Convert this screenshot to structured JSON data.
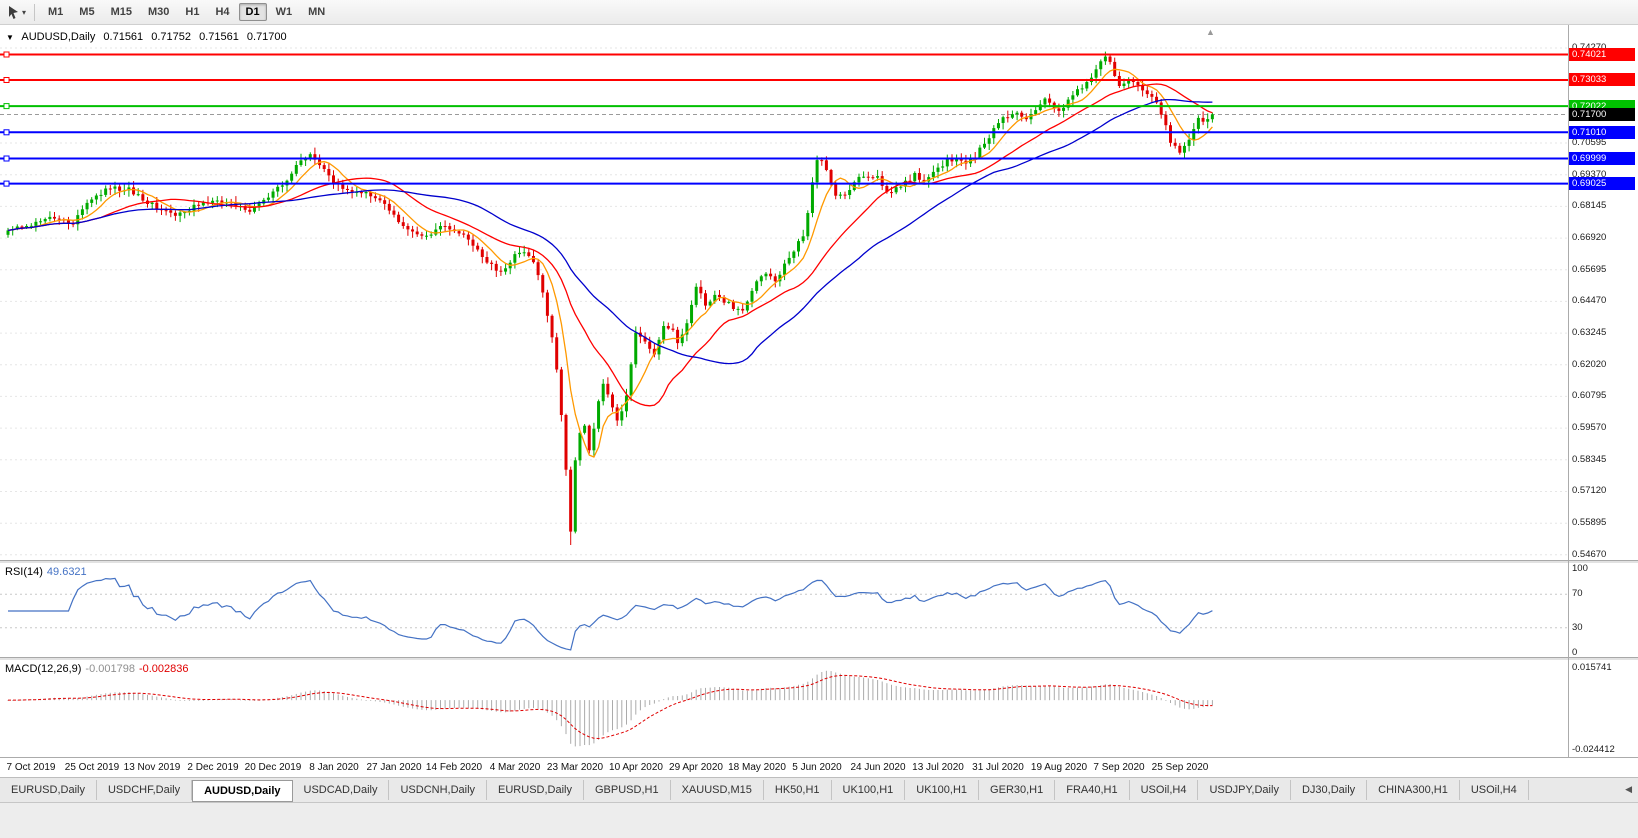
{
  "toolbar": {
    "timeframes": [
      "M1",
      "M5",
      "M15",
      "M30",
      "H1",
      "H4",
      "D1",
      "W1",
      "MN"
    ],
    "active_timeframe": "D1"
  },
  "header": {
    "symbol": "AUDUSD,Daily",
    "open": "0.71561",
    "high": "0.71752",
    "low": "0.71561",
    "close": "0.71700"
  },
  "chart_data": {
    "type": "candlestick",
    "symbol": "AUDUSD",
    "timeframe": "Daily",
    "ohlc_current": {
      "open": 0.71561,
      "high": 0.71752,
      "low": 0.71561,
      "close": 0.717
    },
    "ylim": [
      0.5447,
      0.7516
    ],
    "candle_count": 260,
    "first_open": 0.6705,
    "last_close": 0.717,
    "noise": 0.0009,
    "up_color": "#00AA00",
    "down_color": "#E00000",
    "bid_line_color": "#9a9a9a",
    "price_anchors": [
      [
        0,
        0.672
      ],
      [
        5,
        0.6745
      ],
      [
        10,
        0.6775
      ],
      [
        14,
        0.675
      ],
      [
        18,
        0.6845
      ],
      [
        22,
        0.6885
      ],
      [
        26,
        0.688
      ],
      [
        31,
        0.682
      ],
      [
        35,
        0.6785
      ],
      [
        38,
        0.679
      ],
      [
        41,
        0.6825
      ],
      [
        44,
        0.684
      ],
      [
        48,
        0.6825
      ],
      [
        52,
        0.68
      ],
      [
        57,
        0.687
      ],
      [
        60,
        0.6905
      ],
      [
        63,
        0.7
      ],
      [
        65,
        0.702
      ],
      [
        68,
        0.696
      ],
      [
        70,
        0.69
      ],
      [
        73,
        0.6875
      ],
      [
        77,
        0.6865
      ],
      [
        80,
        0.6845
      ],
      [
        83,
        0.678
      ],
      [
        86,
        0.672
      ],
      [
        90,
        0.6695
      ],
      [
        93,
        0.6735
      ],
      [
        96,
        0.672
      ],
      [
        99,
        0.6685
      ],
      [
        101,
        0.664
      ],
      [
        103,
        0.66
      ],
      [
        106,
        0.6555
      ],
      [
        109,
        0.6625
      ],
      [
        111,
        0.664
      ],
      [
        113,
        0.66
      ],
      [
        115,
        0.648
      ],
      [
        116,
        0.6395
      ],
      [
        117,
        0.631
      ],
      [
        118,
        0.6175
      ],
      [
        119,
        0.6
      ],
      [
        120,
        0.579
      ],
      [
        121,
        0.556
      ],
      [
        122,
        0.583
      ],
      [
        123,
        0.593
      ],
      [
        124,
        0.5965
      ],
      [
        125,
        0.587
      ],
      [
        126,
        0.596
      ],
      [
        127,
        0.606
      ],
      [
        128,
        0.6135
      ],
      [
        129,
        0.609
      ],
      [
        130,
        0.6035
      ],
      [
        131,
        0.5985
      ],
      [
        132,
        0.603
      ],
      [
        133,
        0.6075
      ],
      [
        135,
        0.632
      ],
      [
        137,
        0.629
      ],
      [
        139,
        0.625
      ],
      [
        141,
        0.636
      ],
      [
        143,
        0.633
      ],
      [
        144,
        0.629
      ],
      [
        146,
        0.6365
      ],
      [
        148,
        0.651
      ],
      [
        150,
        0.643
      ],
      [
        152,
        0.6475
      ],
      [
        154,
        0.645
      ],
      [
        156,
        0.6425
      ],
      [
        158,
        0.6405
      ],
      [
        160,
        0.648
      ],
      [
        161,
        0.653
      ],
      [
        163,
        0.6555
      ],
      [
        165,
        0.653
      ],
      [
        167,
        0.6585
      ],
      [
        169,
        0.6645
      ],
      [
        171,
        0.6705
      ],
      [
        172,
        0.679
      ],
      [
        173,
        0.69
      ],
      [
        174,
        0.6985
      ],
      [
        175,
        0.7
      ],
      [
        176,
        0.6955
      ],
      [
        178,
        0.685
      ],
      [
        180,
        0.6865
      ],
      [
        182,
        0.6905
      ],
      [
        184,
        0.6935
      ],
      [
        187,
        0.693
      ],
      [
        189,
        0.6865
      ],
      [
        191,
        0.6885
      ],
      [
        193,
        0.6905
      ],
      [
        195,
        0.6935
      ],
      [
        197,
        0.6905
      ],
      [
        200,
        0.696
      ],
      [
        202,
        0.699
      ],
      [
        204,
        0.7
      ],
      [
        206,
        0.6985
      ],
      [
        208,
        0.701
      ],
      [
        210,
        0.706
      ],
      [
        213,
        0.714
      ],
      [
        215,
        0.7165
      ],
      [
        217,
        0.7175
      ],
      [
        219,
        0.715
      ],
      [
        221,
        0.719
      ],
      [
        223,
        0.7235
      ],
      [
        225,
        0.7195
      ],
      [
        226,
        0.7175
      ],
      [
        228,
        0.7225
      ],
      [
        230,
        0.726
      ],
      [
        232,
        0.729
      ],
      [
        234,
        0.734
      ],
      [
        236,
        0.7395
      ],
      [
        237,
        0.737
      ],
      [
        238,
        0.731
      ],
      [
        239,
        0.728
      ],
      [
        241,
        0.7305
      ],
      [
        243,
        0.7285
      ],
      [
        245,
        0.7255
      ],
      [
        247,
        0.721
      ],
      [
        249,
        0.713
      ],
      [
        250,
        0.706
      ],
      [
        251,
        0.704
      ],
      [
        252,
        0.703
      ],
      [
        253,
        0.7055
      ],
      [
        254,
        0.708
      ],
      [
        255,
        0.712
      ],
      [
        256,
        0.715
      ],
      [
        257,
        0.7135
      ],
      [
        258,
        0.716
      ],
      [
        259,
        0.717
      ]
    ],
    "crash_low": {
      "index": 121,
      "low": 0.5505
    },
    "peak_high": {
      "index": 236,
      "high": 0.7413
    },
    "moving_averages": [
      {
        "period": 7,
        "color": "#FF9900",
        "name": "ma-fast"
      },
      {
        "period": 21,
        "color": "#FF0000",
        "name": "ma-mid"
      },
      {
        "period": 40,
        "color": "#0000CD",
        "name": "ma-slow"
      }
    ],
    "levels": [
      {
        "price": 0.74021,
        "label": "0.74021",
        "color": "#FF0000"
      },
      {
        "price": 0.73033,
        "label": "0.73033",
        "color": "#FF0000"
      },
      {
        "price": 0.72022,
        "label": "0.72022",
        "color": "#00C000"
      },
      {
        "price": 0.7101,
        "label": "0.71010",
        "color": "#0000FF"
      },
      {
        "price": 0.69999,
        "label": "0.69999",
        "color": "#0000FF"
      },
      {
        "price": 0.69025,
        "label": "0.69025",
        "color": "#0000FF"
      }
    ],
    "current_price": {
      "label": "0.71700",
      "value": 0.717,
      "box_color": "#000000"
    },
    "y_axis": {
      "tick_labels": [
        "0.74270",
        "0.70595",
        "0.69370",
        "0.68145",
        "0.66920",
        "0.65695",
        "0.64470",
        "0.63245",
        "0.62020",
        "0.60795",
        "0.59570",
        "0.58345",
        "0.57120",
        "0.55895",
        "0.54670"
      ],
      "tick_values": [
        0.7427,
        0.70595,
        0.6937,
        0.68145,
        0.6692,
        0.65695,
        0.6447,
        0.63245,
        0.6202,
        0.60795,
        0.5957,
        0.58345,
        0.5712,
        0.55895,
        0.5467
      ]
    },
    "x_axis": {
      "labels": [
        "7 Oct 2019",
        "25 Oct 2019",
        "13 Nov 2019",
        "2 Dec 2019",
        "20 Dec 2019",
        "8 Jan 2020",
        "27 Jan 2020",
        "14 Feb 2020",
        "4 Mar 2020",
        "23 Mar 2020",
        "10 Apr 2020",
        "29 Apr 2020",
        "18 May 2020",
        "5 Jun 2020",
        "24 Jun 2020",
        "13 Jul 2020",
        "31 Jul 2020",
        "19 Aug 2020",
        "7 Sep 2020",
        "25 Sep 2020"
      ],
      "first_index": 5,
      "step": 13
    },
    "rsi": {
      "name": "RSI(14)",
      "value": "49.6321",
      "period": 14,
      "color": "#4472C4",
      "levels": [
        70,
        30
      ],
      "axis_values": [
        100,
        70,
        30,
        0
      ],
      "axis_labels": [
        "100",
        "70",
        "30",
        "0"
      ]
    },
    "macd": {
      "name": "MACD(12,26,9)",
      "value_main": "-0.001798",
      "value_signal": "-0.002836",
      "fast": 12,
      "slow": 26,
      "signal": 9,
      "axis_max": 0.015741,
      "axis_min": -0.024412,
      "axis_max_label": "0.015741",
      "axis_min_label": "-0.024412",
      "hist_color": "#ABABAB",
      "signal_color": "#E00000"
    }
  },
  "tabs": {
    "items": [
      "EURUSD,Daily",
      "USDCHF,Daily",
      "AUDUSD,Daily",
      "USDCAD,Daily",
      "USDCNH,Daily",
      "EURUSD,Daily",
      "GBPUSD,H1",
      "XAUUSD,M15",
      "HK50,H1",
      "UK100,H1",
      "UK100,H1",
      "GER30,H1",
      "FRA40,H1",
      "USOil,H4",
      "USDJPY,Daily",
      "DJ30,Daily",
      "CHINA300,H1",
      "USOil,H4"
    ],
    "active_index": 2
  }
}
